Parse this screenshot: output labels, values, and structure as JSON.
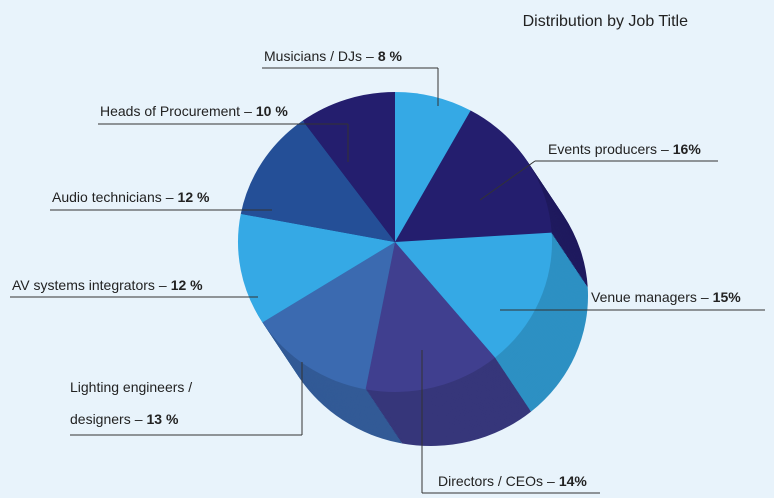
{
  "chart_data": {
    "type": "pie",
    "title": "Distribution by Job Title",
    "categories": [
      "Musicians / DJs",
      "Events producers",
      "Venue managers",
      "Directors / CEOs",
      "Lighting engineers / designers",
      "AV systems integrators",
      "Audio technicians",
      "Heads of Procurement"
    ],
    "values": [
      8,
      16,
      15,
      14,
      13,
      12,
      12,
      10
    ],
    "value_labels": [
      "8 %",
      "16%",
      "15%",
      "14%",
      "13 %",
      "12 %",
      "12 %",
      "10 %"
    ],
    "separator": "–",
    "colors": [
      "#35a9e5",
      "#241e6e",
      "#35a9e5",
      "#403f8f",
      "#3b6ab0",
      "#35a9e5",
      "#244f97",
      "#241e6e"
    ]
  }
}
